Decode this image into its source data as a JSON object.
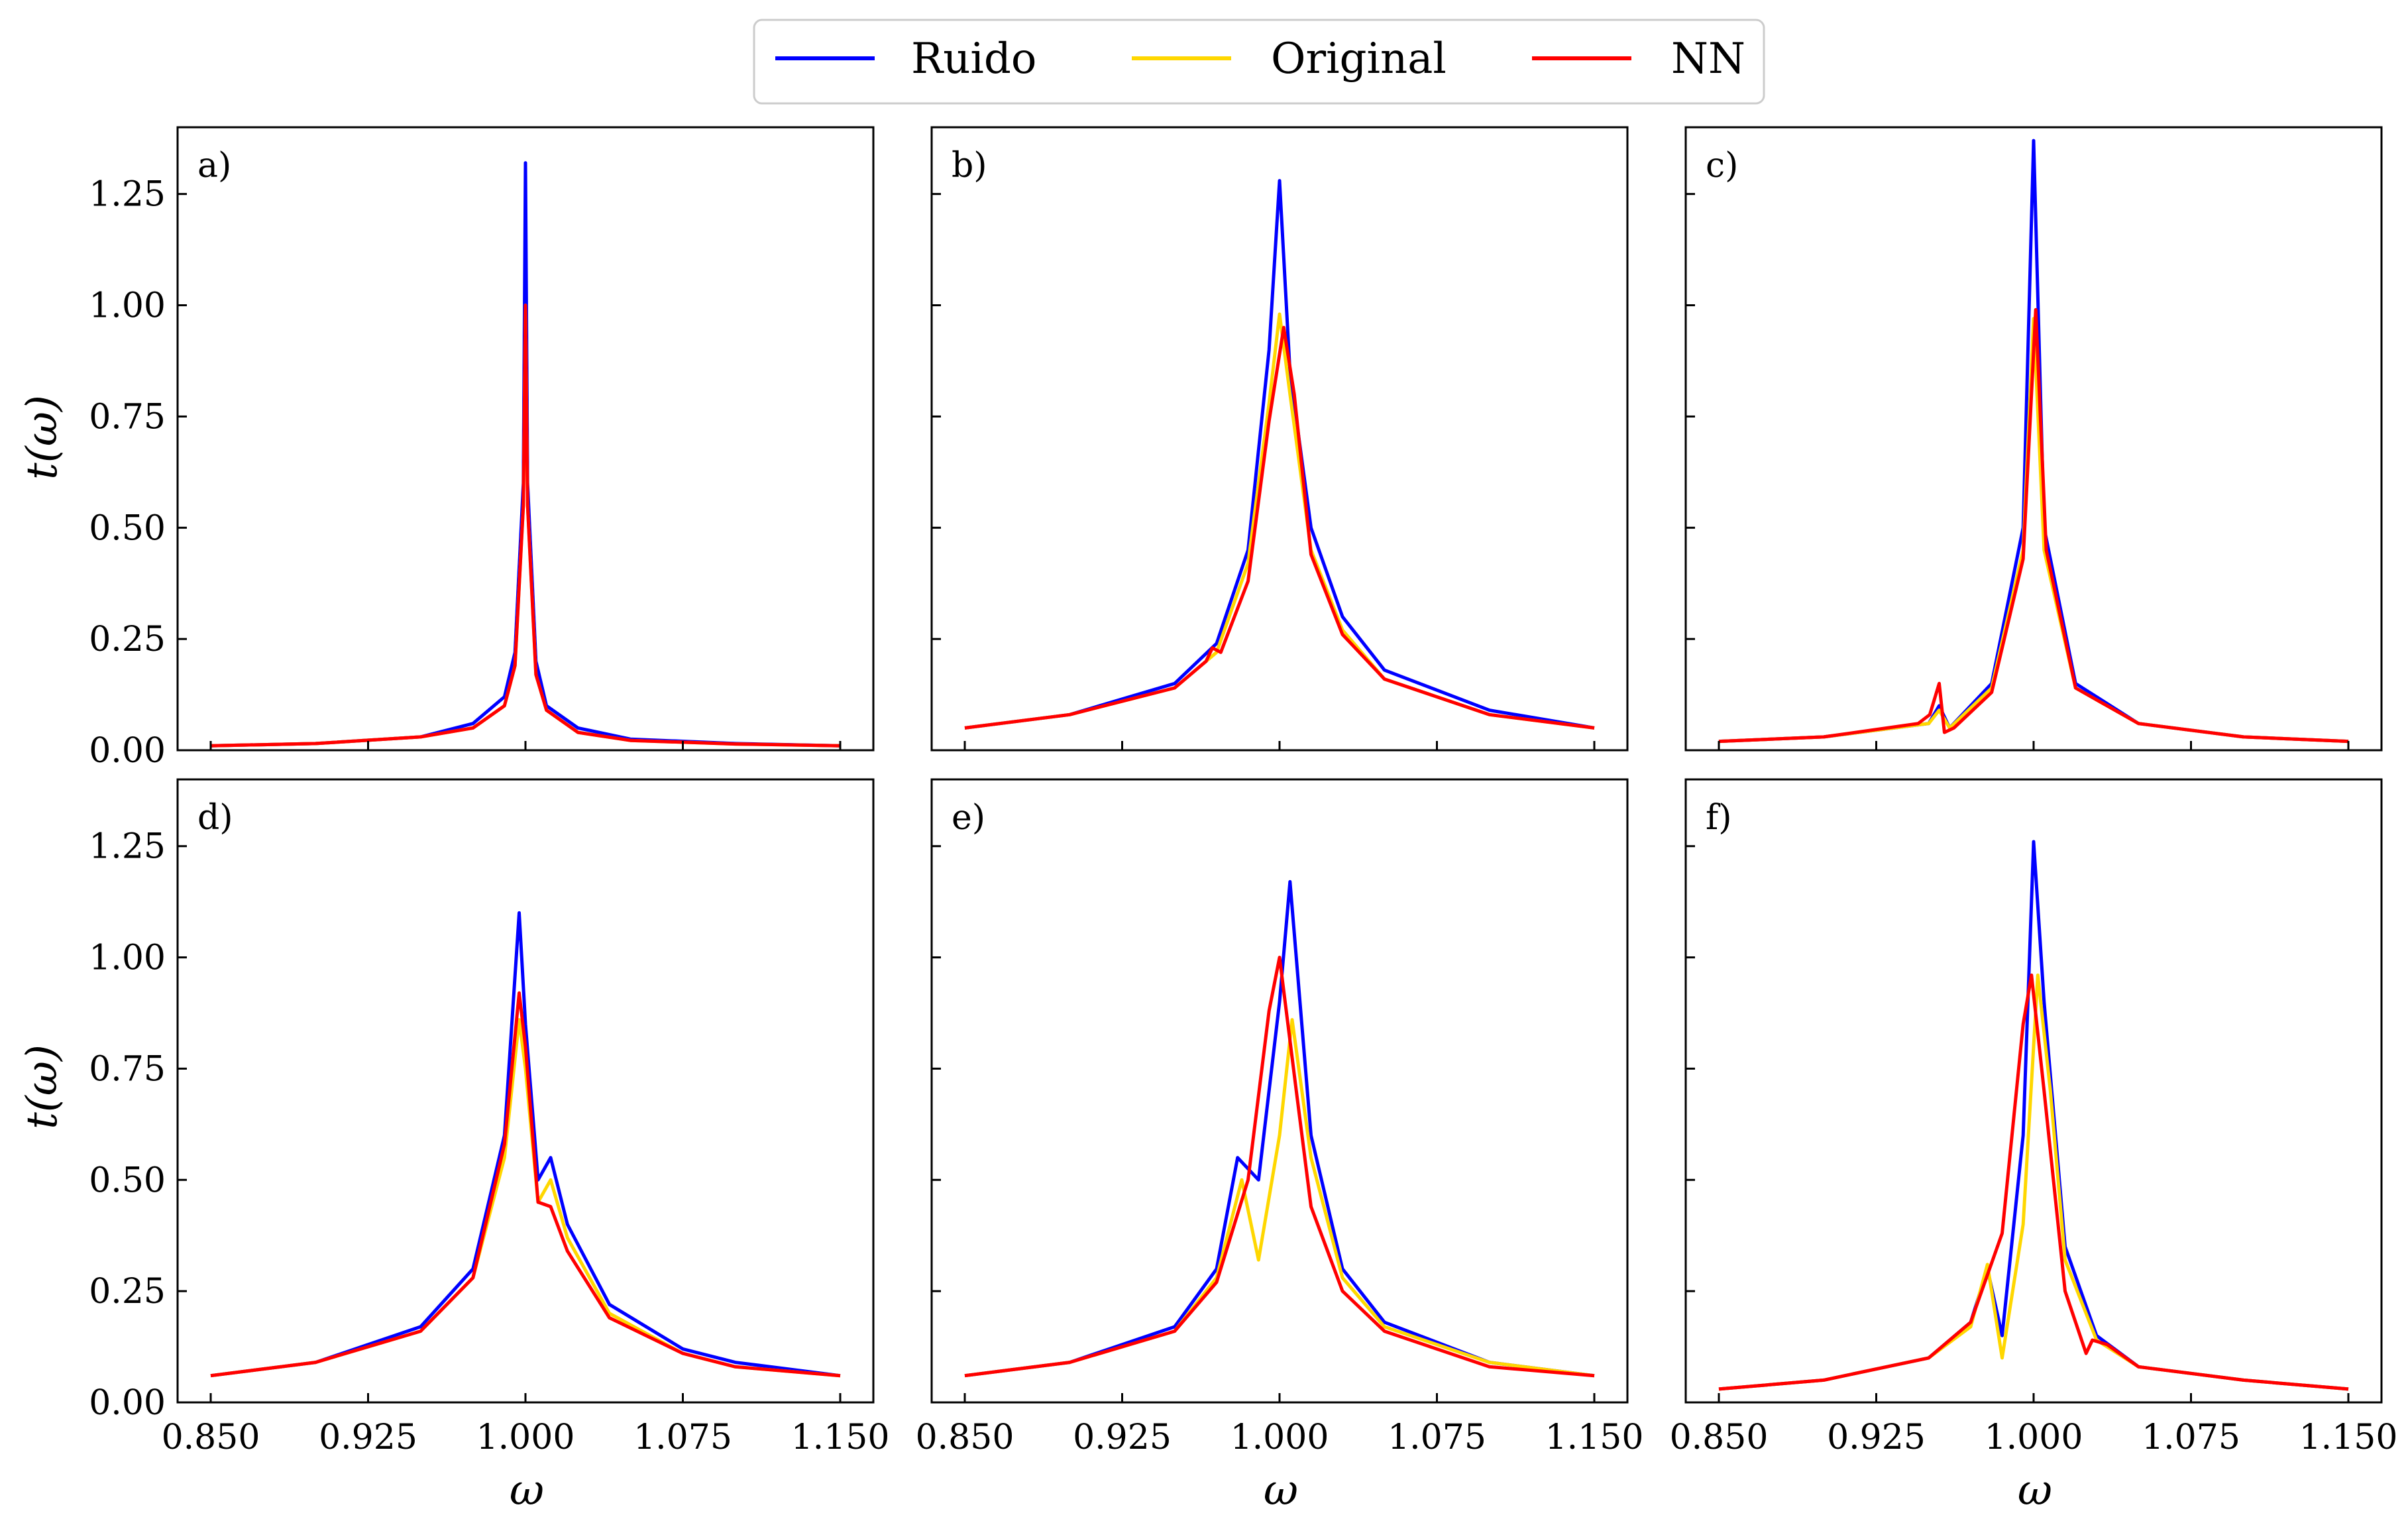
{
  "legend": [
    {
      "name": "Ruido",
      "color": "#0000ff"
    },
    {
      "name": "Original",
      "color": "#ffd700"
    },
    {
      "name": "NN",
      "color": "#ff0000"
    }
  ],
  "chart_data": {
    "type": "line",
    "xlabel": "ω",
    "ylabel": "t(ω)",
    "xlim": [
      0.85,
      1.15
    ],
    "ylim": [
      0,
      1.4
    ],
    "xticks": [
      "0.850",
      "0.925",
      "1.000",
      "1.075",
      "1.150"
    ],
    "yticks": [
      "0.00",
      "0.25",
      "0.50",
      "0.75",
      "1.00",
      "1.25"
    ],
    "grid": false,
    "legend_position": "top-center",
    "panels": [
      {
        "label": "a)",
        "series": [
          {
            "name": "Ruido",
            "x": [
              0.85,
              0.9,
              0.95,
              0.975,
              0.99,
              0.995,
              0.999,
              1.0,
              1.001,
              1.005,
              1.01,
              1.025,
              1.05,
              1.1,
              1.15
            ],
            "y": [
              0.01,
              0.015,
              0.03,
              0.06,
              0.12,
              0.22,
              0.6,
              1.32,
              0.6,
              0.2,
              0.1,
              0.05,
              0.025,
              0.015,
              0.01
            ]
          },
          {
            "name": "Original",
            "x": [
              0.85,
              0.9,
              0.95,
              0.975,
              0.99,
              0.995,
              0.999,
              1.0,
              1.001,
              1.005,
              1.01,
              1.025,
              1.05,
              1.1,
              1.15
            ],
            "y": [
              0.01,
              0.015,
              0.03,
              0.05,
              0.1,
              0.19,
              0.55,
              1.0,
              0.55,
              0.17,
              0.09,
              0.04,
              0.022,
              0.014,
              0.01
            ]
          },
          {
            "name": "NN",
            "x": [
              0.85,
              0.9,
              0.95,
              0.975,
              0.99,
              0.995,
              0.999,
              1.0,
              1.001,
              1.005,
              1.01,
              1.025,
              1.05,
              1.1,
              1.15
            ],
            "y": [
              0.01,
              0.015,
              0.03,
              0.05,
              0.1,
              0.19,
              0.55,
              1.0,
              0.55,
              0.17,
              0.09,
              0.04,
              0.022,
              0.014,
              0.01
            ]
          }
        ]
      },
      {
        "label": "b)",
        "series": [
          {
            "name": "Ruido",
            "x": [
              0.85,
              0.9,
              0.95,
              0.97,
              0.985,
              0.995,
              1.0,
              1.005,
              1.015,
              1.03,
              1.05,
              1.1,
              1.15
            ],
            "y": [
              0.05,
              0.08,
              0.15,
              0.24,
              0.45,
              0.9,
              1.28,
              0.85,
              0.5,
              0.3,
              0.18,
              0.09,
              0.05
            ]
          },
          {
            "name": "Original",
            "x": [
              0.85,
              0.9,
              0.95,
              0.97,
              0.985,
              0.995,
              1.0,
              1.005,
              1.015,
              1.03,
              1.05,
              1.1,
              1.15
            ],
            "y": [
              0.05,
              0.08,
              0.14,
              0.22,
              0.42,
              0.78,
              0.98,
              0.8,
              0.45,
              0.27,
              0.16,
              0.08,
              0.05
            ]
          },
          {
            "name": "NN",
            "x": [
              0.85,
              0.9,
              0.95,
              0.965,
              0.968,
              0.972,
              0.985,
              0.995,
              1.002,
              1.007,
              1.015,
              1.03,
              1.05,
              1.1,
              1.15
            ],
            "y": [
              0.05,
              0.08,
              0.14,
              0.2,
              0.23,
              0.22,
              0.38,
              0.74,
              0.95,
              0.8,
              0.44,
              0.26,
              0.16,
              0.08,
              0.05
            ]
          }
        ]
      },
      {
        "label": "c)",
        "series": [
          {
            "name": "Ruido",
            "x": [
              0.85,
              0.9,
              0.95,
              0.955,
              0.96,
              0.98,
              0.995,
              1.0,
              1.005,
              1.02,
              1.05,
              1.1,
              1.15
            ],
            "y": [
              0.02,
              0.03,
              0.06,
              0.1,
              0.05,
              0.15,
              0.5,
              1.37,
              0.5,
              0.15,
              0.06,
              0.03,
              0.02
            ]
          },
          {
            "name": "Original",
            "x": [
              0.85,
              0.9,
              0.95,
              0.955,
              0.96,
              0.98,
              0.995,
              1.0,
              1.005,
              1.02,
              1.05,
              1.1,
              1.15
            ],
            "y": [
              0.02,
              0.03,
              0.06,
              0.09,
              0.05,
              0.14,
              0.45,
              0.97,
              0.45,
              0.14,
              0.06,
              0.03,
              0.02
            ]
          },
          {
            "name": "NN",
            "x": [
              0.85,
              0.9,
              0.945,
              0.9505,
              0.955,
              0.9575,
              0.962,
              0.98,
              0.995,
              1.001,
              1.006,
              1.02,
              1.05,
              1.1,
              1.15
            ],
            "y": [
              0.02,
              0.03,
              0.06,
              0.08,
              0.15,
              0.04,
              0.05,
              0.13,
              0.43,
              0.99,
              0.45,
              0.14,
              0.06,
              0.03,
              0.02
            ]
          }
        ]
      },
      {
        "label": "d)",
        "series": [
          {
            "name": "Ruido",
            "x": [
              0.85,
              0.9,
              0.95,
              0.975,
              0.99,
              0.997,
              1.0,
              1.006,
              1.012,
              1.02,
              1.04,
              1.075,
              1.1,
              1.15
            ],
            "y": [
              0.06,
              0.09,
              0.17,
              0.3,
              0.6,
              1.1,
              0.85,
              0.5,
              0.55,
              0.4,
              0.22,
              0.12,
              0.09,
              0.06
            ]
          },
          {
            "name": "Original",
            "x": [
              0.85,
              0.9,
              0.95,
              0.975,
              0.99,
              0.997,
              1.0,
              1.006,
              1.012,
              1.02,
              1.04,
              1.075,
              1.1,
              1.15
            ],
            "y": [
              0.06,
              0.09,
              0.16,
              0.28,
              0.55,
              0.86,
              0.75,
              0.45,
              0.5,
              0.37,
              0.2,
              0.11,
              0.08,
              0.06
            ]
          },
          {
            "name": "NN",
            "x": [
              0.85,
              0.9,
              0.95,
              0.975,
              0.99,
              0.997,
              1.0,
              1.006,
              1.012,
              1.02,
              1.04,
              1.075,
              1.1,
              1.15
            ],
            "y": [
              0.06,
              0.09,
              0.16,
              0.28,
              0.58,
              0.92,
              0.8,
              0.45,
              0.44,
              0.34,
              0.19,
              0.11,
              0.08,
              0.06
            ]
          }
        ]
      },
      {
        "label": "e)",
        "series": [
          {
            "name": "Ruido",
            "x": [
              0.85,
              0.9,
              0.95,
              0.97,
              0.98,
              0.99,
              1.0,
              1.005,
              1.015,
              1.03,
              1.05,
              1.1,
              1.15
            ],
            "y": [
              0.06,
              0.09,
              0.17,
              0.3,
              0.55,
              0.5,
              0.9,
              1.17,
              0.6,
              0.3,
              0.18,
              0.09,
              0.06
            ]
          },
          {
            "name": "Original",
            "x": [
              0.85,
              0.9,
              0.95,
              0.97,
              0.982,
              0.99,
              1.0,
              1.006,
              1.015,
              1.03,
              1.05,
              1.1,
              1.15
            ],
            "y": [
              0.06,
              0.09,
              0.16,
              0.28,
              0.5,
              0.32,
              0.6,
              0.86,
              0.55,
              0.28,
              0.17,
              0.09,
              0.06
            ]
          },
          {
            "name": "NN",
            "x": [
              0.85,
              0.9,
              0.95,
              0.97,
              0.985,
              0.995,
              1.0,
              1.008,
              1.015,
              1.03,
              1.05,
              1.1,
              1.15
            ],
            "y": [
              0.06,
              0.09,
              0.16,
              0.27,
              0.5,
              0.88,
              1.0,
              0.7,
              0.44,
              0.25,
              0.16,
              0.08,
              0.06
            ]
          }
        ]
      },
      {
        "label": "f)",
        "series": [
          {
            "name": "Ruido",
            "x": [
              0.85,
              0.9,
              0.95,
              0.97,
              0.978,
              0.985,
              0.995,
              1.0,
              1.005,
              1.015,
              1.03,
              1.05,
              1.1,
              1.15
            ],
            "y": [
              0.03,
              0.05,
              0.1,
              0.18,
              0.3,
              0.15,
              0.6,
              1.26,
              0.9,
              0.35,
              0.15,
              0.08,
              0.05,
              0.03
            ]
          },
          {
            "name": "Original",
            "x": [
              0.85,
              0.9,
              0.95,
              0.97,
              0.978,
              0.985,
              0.995,
              1.002,
              1.008,
              1.015,
              1.03,
              1.05,
              1.1,
              1.15
            ],
            "y": [
              0.03,
              0.05,
              0.1,
              0.17,
              0.31,
              0.1,
              0.4,
              0.96,
              0.7,
              0.32,
              0.14,
              0.08,
              0.05,
              0.03
            ]
          },
          {
            "name": "NN",
            "x": [
              0.85,
              0.9,
              0.95,
              0.97,
              0.985,
              0.995,
              0.999,
              1.005,
              1.015,
              1.025,
              1.028,
              1.035,
              1.05,
              1.1,
              1.15
            ],
            "y": [
              0.03,
              0.05,
              0.1,
              0.18,
              0.38,
              0.85,
              0.96,
              0.7,
              0.25,
              0.11,
              0.14,
              0.13,
              0.08,
              0.05,
              0.03
            ]
          }
        ]
      }
    ]
  }
}
